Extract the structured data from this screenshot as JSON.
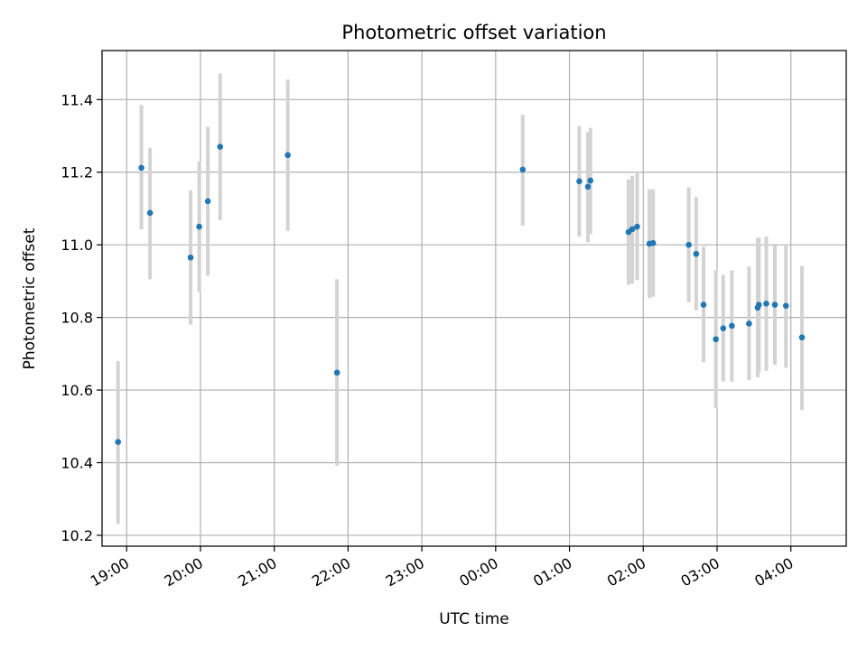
{
  "chart_data": {
    "type": "scatter",
    "title": "Photometric offset variation",
    "xlabel": "UTC time",
    "ylabel": "Photometric offset",
    "x_tick_labels": [
      "19:00",
      "20:00",
      "21:00",
      "22:00",
      "23:00",
      "00:00",
      "01:00",
      "02:00",
      "03:00",
      "04:00"
    ],
    "y_tick_labels": [
      "10.2",
      "10.4",
      "10.6",
      "10.8",
      "11.0",
      "11.2",
      "11.4"
    ],
    "x_axis_start_label": "18:40",
    "x_axis_end_label": "04:45",
    "ylim": [
      10.17,
      11.535
    ],
    "grid": true,
    "colors": {
      "marker": "#1f77b4",
      "errorbar": "#d3d3d3",
      "grid": "#b0b0b0"
    },
    "series": [
      {
        "points": [
          {
            "x": "18:53",
            "y": 10.457,
            "lo": 10.232,
            "hi": 10.68
          },
          {
            "x": "19:12",
            "y": 11.212,
            "lo": 11.043,
            "hi": 11.385
          },
          {
            "x": "19:19",
            "y": 11.088,
            "lo": 10.905,
            "hi": 11.267
          },
          {
            "x": "19:52",
            "y": 10.965,
            "lo": 10.78,
            "hi": 11.15
          },
          {
            "x": "19:59",
            "y": 11.05,
            "lo": 10.87,
            "hi": 11.23
          },
          {
            "x": "20:06",
            "y": 11.12,
            "lo": 10.915,
            "hi": 11.325
          },
          {
            "x": "20:16",
            "y": 11.27,
            "lo": 11.068,
            "hi": 11.472
          },
          {
            "x": "21:11",
            "y": 11.247,
            "lo": 11.038,
            "hi": 11.455
          },
          {
            "x": "21:51",
            "y": 10.648,
            "lo": 10.392,
            "hi": 10.905
          },
          {
            "x": "00:22",
            "y": 11.207,
            "lo": 11.053,
            "hi": 11.358
          },
          {
            "x": "01:08",
            "y": 11.175,
            "lo": 11.023,
            "hi": 11.327
          },
          {
            "x": "01:15",
            "y": 11.16,
            "lo": 11.007,
            "hi": 11.31
          },
          {
            "x": "01:17",
            "y": 11.177,
            "lo": 11.03,
            "hi": 11.322
          },
          {
            "x": "01:48",
            "y": 11.035,
            "lo": 10.89,
            "hi": 11.18
          },
          {
            "x": "01:51",
            "y": 11.043,
            "lo": 10.893,
            "hi": 11.19
          },
          {
            "x": "01:55",
            "y": 11.05,
            "lo": 10.903,
            "hi": 11.197
          },
          {
            "x": "02:05",
            "y": 11.003,
            "lo": 10.853,
            "hi": 11.153
          },
          {
            "x": "02:08",
            "y": 11.005,
            "lo": 10.857,
            "hi": 11.153
          },
          {
            "x": "02:37",
            "y": 11.0,
            "lo": 10.842,
            "hi": 11.158
          },
          {
            "x": "02:43",
            "y": 10.975,
            "lo": 10.82,
            "hi": 11.132
          },
          {
            "x": "02:49",
            "y": 10.835,
            "lo": 10.677,
            "hi": 10.995
          },
          {
            "x": "02:59",
            "y": 10.74,
            "lo": 10.55,
            "hi": 10.93
          },
          {
            "x": "03:05",
            "y": 10.77,
            "lo": 10.623,
            "hi": 10.917
          },
          {
            "x": "03:12",
            "y": 10.777,
            "lo": 10.623,
            "hi": 10.93
          },
          {
            "x": "03:26",
            "y": 10.783,
            "lo": 10.627,
            "hi": 10.94
          },
          {
            "x": "03:33",
            "y": 10.827,
            "lo": 10.635,
            "hi": 11.018
          },
          {
            "x": "03:34",
            "y": 10.835,
            "lo": 10.65,
            "hi": 11.02
          },
          {
            "x": "03:40",
            "y": 10.838,
            "lo": 10.653,
            "hi": 11.023
          },
          {
            "x": "03:47",
            "y": 10.835,
            "lo": 10.67,
            "hi": 10.998
          },
          {
            "x": "03:56",
            "y": 10.832,
            "lo": 10.662,
            "hi": 11.0
          },
          {
            "x": "04:09",
            "y": 10.745,
            "lo": 10.545,
            "hi": 10.942
          }
        ]
      }
    ]
  }
}
